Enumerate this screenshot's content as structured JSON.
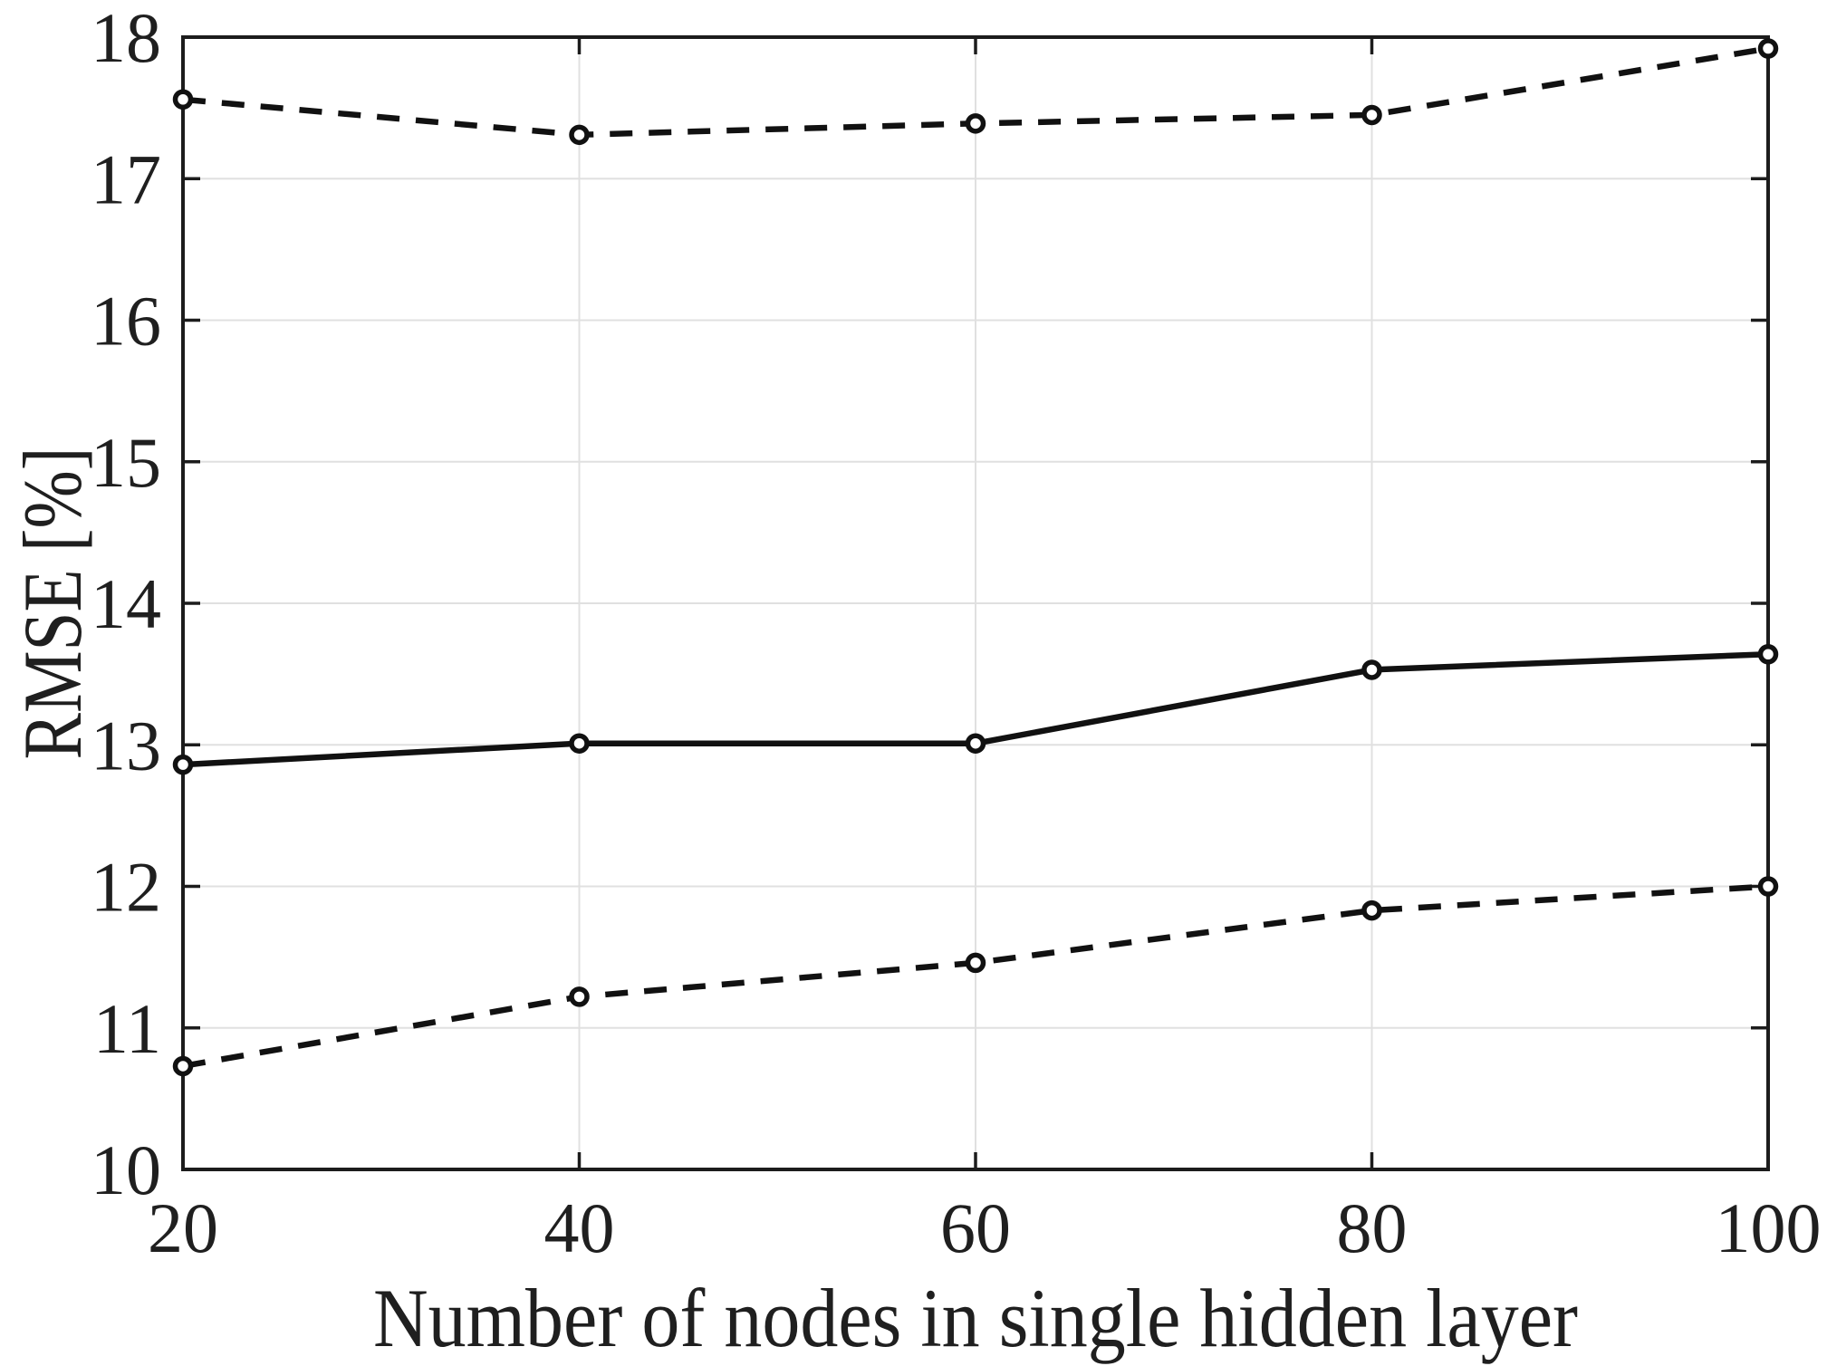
{
  "figure": {
    "background": "#ffffff"
  },
  "chart_data": {
    "type": "line",
    "title": "",
    "xlabel": "Number of nodes in single hidden layer",
    "ylabel": "RMSE [%]",
    "x": [
      20,
      40,
      60,
      80,
      100
    ],
    "series": [
      {
        "name": "upper-dashed-series",
        "line_style": "dashed",
        "marker": "open-circle",
        "color": "#111111",
        "values": [
          17.56,
          17.31,
          17.39,
          17.45,
          17.92
        ]
      },
      {
        "name": "middle-solid-series",
        "line_style": "solid",
        "marker": "open-circle",
        "color": "#111111",
        "values": [
          12.86,
          13.01,
          13.01,
          13.53,
          13.64
        ]
      },
      {
        "name": "lower-dashed-series",
        "line_style": "dashed",
        "marker": "open-circle",
        "color": "#111111",
        "values": [
          10.73,
          11.22,
          11.46,
          11.83,
          12.0
        ]
      }
    ],
    "xlim": [
      20,
      100
    ],
    "ylim": [
      10,
      18
    ],
    "xticks": [
      20,
      40,
      60,
      80,
      100
    ],
    "yticks": [
      10,
      11,
      12,
      13,
      14,
      15,
      16,
      17,
      18
    ],
    "grid": true,
    "legend": null,
    "grid_color": "#e0e0e0",
    "axis_color": "#1c1c1c",
    "plot_background": "#ffffff"
  }
}
